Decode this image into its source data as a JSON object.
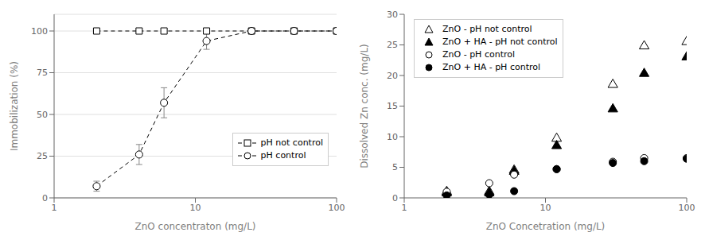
{
  "chart_data": [
    {
      "type": "line",
      "x_label": "ZnO concentraton (mg/L)",
      "y_label": "Immobilization (%)",
      "log": "x",
      "xlim": [
        1,
        100
      ],
      "xticks": [
        1,
        10,
        100
      ],
      "ylim": [
        0,
        110
      ],
      "yticks": [
        0,
        25,
        50,
        75,
        100
      ],
      "grid": "y",
      "legend": "lower right",
      "series": [
        {
          "name": "pH not control",
          "x": [
            2,
            4,
            6,
            12,
            25,
            50,
            100
          ],
          "values": [
            100,
            100,
            100,
            100,
            100,
            100,
            100
          ],
          "error": [
            0,
            0,
            0,
            0,
            0,
            0,
            0
          ],
          "marker": "open_square",
          "line_style": "dashed",
          "color": "#000000"
        },
        {
          "name": "pH control",
          "x": [
            2,
            4,
            6,
            12,
            25,
            50,
            100
          ],
          "values": [
            7,
            26,
            57,
            94,
            100,
            100,
            100
          ],
          "error": [
            3,
            6,
            9,
            5,
            0,
            0,
            0
          ],
          "marker": "open_circle",
          "line_style": "dashed",
          "color": "#000000"
        }
      ]
    },
    {
      "type": "scatter",
      "x_label": "ZnO Concetration (mg/L)",
      "y_label": "Dissolved Zn conc. (mg/L)",
      "log": "x",
      "xlim": [
        1,
        100
      ],
      "xticks": [
        1,
        10,
        100
      ],
      "ylim": [
        0,
        30
      ],
      "yticks": [
        0,
        5,
        10,
        15,
        20,
        25,
        30
      ],
      "grid": false,
      "legend": "upper left",
      "series": [
        {
          "name": "ZnO - pH not control",
          "x": [
            2,
            4,
            6,
            12,
            30,
            50,
            100
          ],
          "values": [
            1.0,
            1.0,
            4.5,
            9.7,
            18.5,
            24.8,
            25.5
          ],
          "marker": "open_triangle",
          "color": "#000000"
        },
        {
          "name": "ZnO + HA - pH not control",
          "x": [
            2,
            4,
            6,
            12,
            30,
            50,
            100
          ],
          "values": [
            0.8,
            0.8,
            4.3,
            8.5,
            14.5,
            20.3,
            23.0
          ],
          "marker": "filled_triangle",
          "color": "#000000"
        },
        {
          "name": "ZnO - pH control",
          "x": [
            2,
            4,
            6,
            12,
            30,
            50,
            100
          ],
          "values": [
            1.0,
            2.4,
            3.8,
            4.7,
            5.9,
            6.5,
            6.5
          ],
          "marker": "open_circle",
          "color": "#000000"
        },
        {
          "name": "ZnO + HA - pH control",
          "x": [
            2,
            4,
            6,
            12,
            30,
            50,
            100
          ],
          "values": [
            0.4,
            0.5,
            1.1,
            4.7,
            5.7,
            6.0,
            6.4
          ],
          "marker": "filled_circle",
          "color": "#000000"
        }
      ]
    }
  ]
}
